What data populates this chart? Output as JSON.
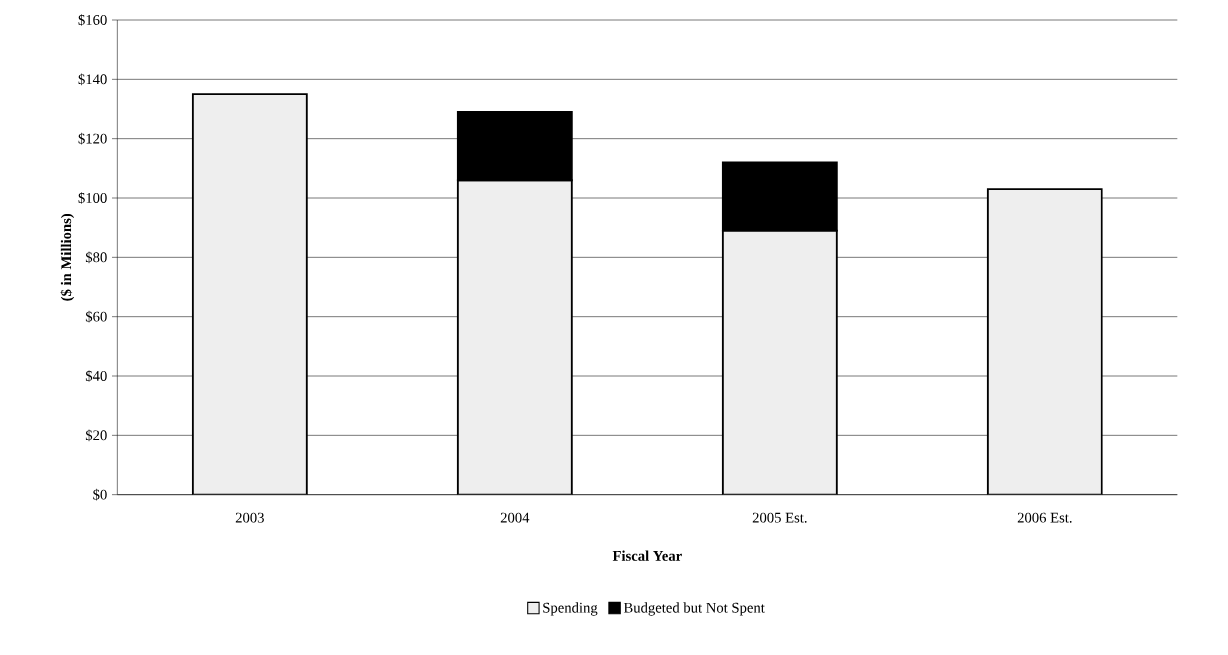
{
  "chart_data": {
    "type": "bar",
    "stacked": true,
    "xlabel": "Fiscal Year",
    "ylabel": "($ in Millions)",
    "categories": [
      "2003",
      "2004",
      "2005 Est.",
      "2006 Est."
    ],
    "series": [
      {
        "name": "Spending",
        "color": "#eeeeee",
        "values": [
          135,
          106,
          89,
          103
        ]
      },
      {
        "name": "Budgeted but Not Spent",
        "color": "#000000",
        "values": [
          null,
          23,
          23,
          null
        ]
      }
    ],
    "ylim": [
      0,
      160
    ],
    "yticks": [
      {
        "value": 0,
        "label": "$0"
      },
      {
        "value": 20,
        "label": "$20"
      },
      {
        "value": 40,
        "label": "$40"
      },
      {
        "value": 60,
        "label": "$60"
      },
      {
        "value": 80,
        "label": "$80"
      },
      {
        "value": 100,
        "label": "$100"
      },
      {
        "value": 120,
        "label": "$120"
      },
      {
        "value": 140,
        "label": "$140"
      },
      {
        "value": 160,
        "label": "$160"
      }
    ],
    "grid": "y",
    "legend": "bottom"
  }
}
